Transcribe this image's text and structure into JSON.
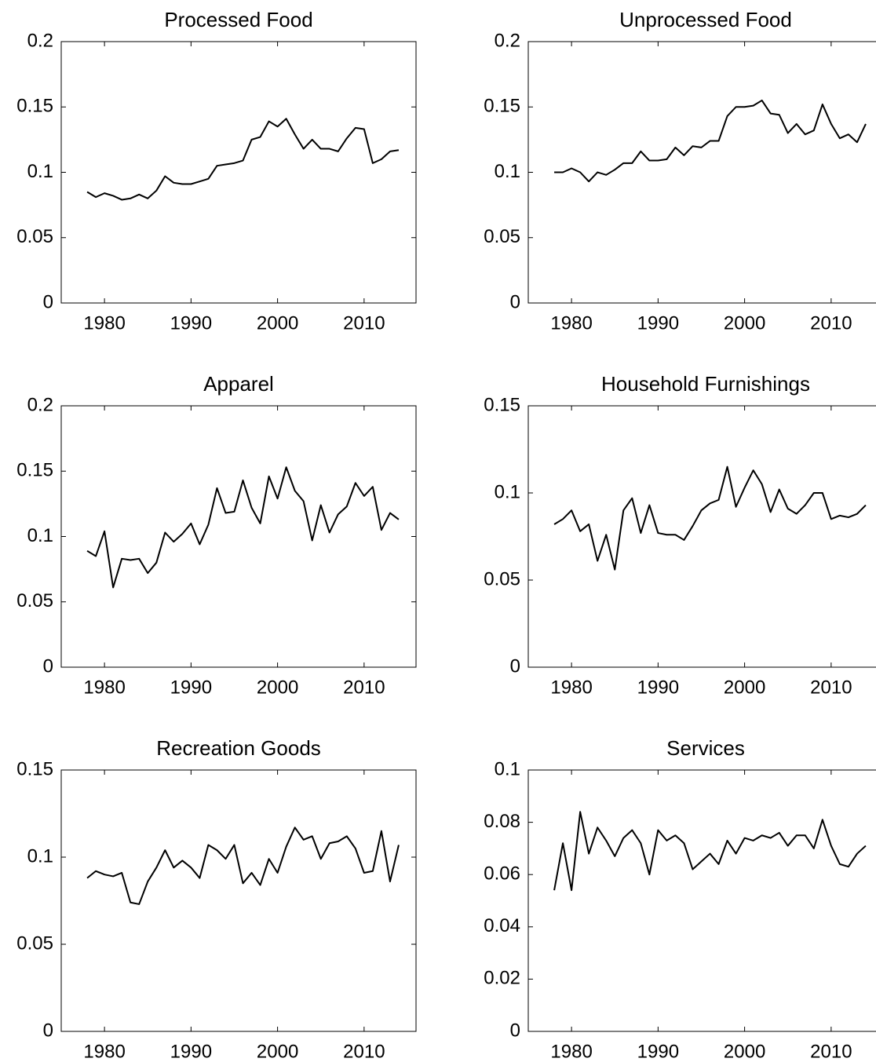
{
  "chart_data": [
    {
      "type": "line",
      "title": "Processed Food",
      "color": "#000000",
      "x": [
        1978,
        1979,
        1980,
        1981,
        1982,
        1983,
        1984,
        1985,
        1986,
        1987,
        1988,
        1989,
        1990,
        1991,
        1992,
        1993,
        1994,
        1995,
        1996,
        1997,
        1998,
        1999,
        2000,
        2001,
        2002,
        2003,
        2004,
        2005,
        2006,
        2007,
        2008,
        2009,
        2010,
        2011,
        2012,
        2013,
        2014
      ],
      "values": [
        0.085,
        0.081,
        0.084,
        0.082,
        0.079,
        0.08,
        0.083,
        0.08,
        0.086,
        0.097,
        0.092,
        0.091,
        0.091,
        0.093,
        0.095,
        0.105,
        0.106,
        0.107,
        0.109,
        0.125,
        0.127,
        0.139,
        0.135,
        0.141,
        0.129,
        0.118,
        0.125,
        0.118,
        0.118,
        0.116,
        0.126,
        0.134,
        0.133,
        0.107,
        0.11,
        0.116,
        0.117
      ],
      "xlim": [
        1975,
        2016
      ],
      "ylim": [
        0,
        0.2
      ],
      "xticks": [
        1980,
        1990,
        2000,
        2010
      ],
      "yticks": [
        0,
        0.05,
        0.1,
        0.15,
        0.2
      ]
    },
    {
      "type": "line",
      "title": "Unprocessed Food",
      "color": "#000000",
      "x": [
        1978,
        1979,
        1980,
        1981,
        1982,
        1983,
        1984,
        1985,
        1986,
        1987,
        1988,
        1989,
        1990,
        1991,
        1992,
        1993,
        1994,
        1995,
        1996,
        1997,
        1998,
        1999,
        2000,
        2001,
        2002,
        2003,
        2004,
        2005,
        2006,
        2007,
        2008,
        2009,
        2010,
        2011,
        2012,
        2013,
        2014
      ],
      "values": [
        0.1,
        0.1,
        0.103,
        0.1,
        0.093,
        0.1,
        0.098,
        0.102,
        0.107,
        0.107,
        0.116,
        0.109,
        0.109,
        0.11,
        0.119,
        0.113,
        0.12,
        0.119,
        0.124,
        0.124,
        0.143,
        0.15,
        0.15,
        0.151,
        0.155,
        0.145,
        0.144,
        0.13,
        0.137,
        0.129,
        0.132,
        0.152,
        0.137,
        0.126,
        0.129,
        0.123,
        0.137
      ],
      "xlim": [
        1975,
        2016
      ],
      "ylim": [
        0,
        0.2
      ],
      "xticks": [
        1980,
        1990,
        2000,
        2010
      ],
      "yticks": [
        0,
        0.05,
        0.1,
        0.15,
        0.2
      ]
    },
    {
      "type": "line",
      "title": "Apparel",
      "color": "#000000",
      "x": [
        1978,
        1979,
        1980,
        1981,
        1982,
        1983,
        1984,
        1985,
        1986,
        1987,
        1988,
        1989,
        1990,
        1991,
        1992,
        1993,
        1994,
        1995,
        1996,
        1997,
        1998,
        1999,
        2000,
        2001,
        2002,
        2003,
        2004,
        2005,
        2006,
        2007,
        2008,
        2009,
        2010,
        2011,
        2012,
        2013,
        2014
      ],
      "values": [
        0.089,
        0.085,
        0.104,
        0.061,
        0.083,
        0.082,
        0.083,
        0.072,
        0.08,
        0.103,
        0.096,
        0.102,
        0.11,
        0.094,
        0.109,
        0.137,
        0.118,
        0.119,
        0.143,
        0.122,
        0.11,
        0.146,
        0.129,
        0.153,
        0.135,
        0.127,
        0.097,
        0.124,
        0.103,
        0.117,
        0.123,
        0.141,
        0.131,
        0.138,
        0.105,
        0.118,
        0.113
      ],
      "xlim": [
        1975,
        2016
      ],
      "ylim": [
        0,
        0.2
      ],
      "xticks": [
        1980,
        1990,
        2000,
        2010
      ],
      "yticks": [
        0,
        0.05,
        0.1,
        0.15,
        0.2
      ]
    },
    {
      "type": "line",
      "title": "Household Furnishings",
      "color": "#000000",
      "x": [
        1978,
        1979,
        1980,
        1981,
        1982,
        1983,
        1984,
        1985,
        1986,
        1987,
        1988,
        1989,
        1990,
        1991,
        1992,
        1993,
        1994,
        1995,
        1996,
        1997,
        1998,
        1999,
        2000,
        2001,
        2002,
        2003,
        2004,
        2005,
        2006,
        2007,
        2008,
        2009,
        2010,
        2011,
        2012,
        2013,
        2014
      ],
      "values": [
        0.082,
        0.085,
        0.09,
        0.078,
        0.082,
        0.061,
        0.076,
        0.056,
        0.09,
        0.097,
        0.077,
        0.093,
        0.077,
        0.076,
        0.076,
        0.073,
        0.081,
        0.09,
        0.094,
        0.096,
        0.115,
        0.092,
        0.103,
        0.113,
        0.105,
        0.089,
        0.102,
        0.091,
        0.088,
        0.093,
        0.1,
        0.1,
        0.085,
        0.087,
        0.086,
        0.088,
        0.093
      ],
      "xlim": [
        1975,
        2016
      ],
      "ylim": [
        0,
        0.15
      ],
      "xticks": [
        1980,
        1990,
        2000,
        2010
      ],
      "yticks": [
        0,
        0.05,
        0.1,
        0.15
      ]
    },
    {
      "type": "line",
      "title": "Recreation Goods",
      "color": "#000000",
      "x": [
        1978,
        1979,
        1980,
        1981,
        1982,
        1983,
        1984,
        1985,
        1986,
        1987,
        1988,
        1989,
        1990,
        1991,
        1992,
        1993,
        1994,
        1995,
        1996,
        1997,
        1998,
        1999,
        2000,
        2001,
        2002,
        2003,
        2004,
        2005,
        2006,
        2007,
        2008,
        2009,
        2010,
        2011,
        2012,
        2013,
        2014
      ],
      "values": [
        0.088,
        0.092,
        0.09,
        0.089,
        0.091,
        0.074,
        0.073,
        0.086,
        0.094,
        0.104,
        0.094,
        0.098,
        0.094,
        0.088,
        0.107,
        0.104,
        0.099,
        0.107,
        0.085,
        0.091,
        0.084,
        0.099,
        0.091,
        0.106,
        0.117,
        0.11,
        0.112,
        0.099,
        0.108,
        0.109,
        0.112,
        0.105,
        0.091,
        0.092,
        0.115,
        0.086,
        0.107
      ],
      "xlim": [
        1975,
        2016
      ],
      "ylim": [
        0,
        0.15
      ],
      "xticks": [
        1980,
        1990,
        2000,
        2010
      ],
      "yticks": [
        0,
        0.05,
        0.1,
        0.15
      ]
    },
    {
      "type": "line",
      "title": "Services",
      "color": "#000000",
      "x": [
        1978,
        1979,
        1980,
        1981,
        1982,
        1983,
        1984,
        1985,
        1986,
        1987,
        1988,
        1989,
        1990,
        1991,
        1992,
        1993,
        1994,
        1995,
        1996,
        1997,
        1998,
        1999,
        2000,
        2001,
        2002,
        2003,
        2004,
        2005,
        2006,
        2007,
        2008,
        2009,
        2010,
        2011,
        2012,
        2013,
        2014
      ],
      "values": [
        0.054,
        0.072,
        0.054,
        0.084,
        0.068,
        0.078,
        0.073,
        0.067,
        0.074,
        0.077,
        0.072,
        0.06,
        0.077,
        0.073,
        0.075,
        0.072,
        0.062,
        0.065,
        0.068,
        0.064,
        0.073,
        0.068,
        0.074,
        0.073,
        0.075,
        0.074,
        0.076,
        0.071,
        0.075,
        0.075,
        0.07,
        0.081,
        0.071,
        0.064,
        0.063,
        0.068,
        0.071
      ],
      "xlim": [
        1975,
        2016
      ],
      "ylim": [
        0,
        0.1
      ],
      "xticks": [
        1980,
        1990,
        2000,
        2010
      ],
      "yticks": [
        0,
        0.02,
        0.04,
        0.06,
        0.08,
        0.1
      ]
    }
  ]
}
